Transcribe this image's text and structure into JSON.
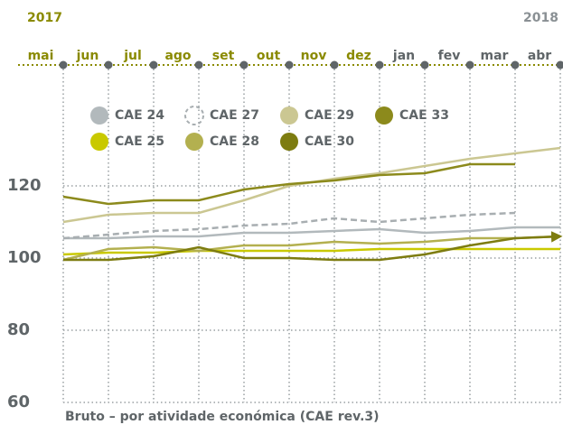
{
  "chart_data": {
    "type": "line",
    "years": [
      "2017",
      "2018"
    ],
    "year_colors": [
      "#8a8a00",
      "#8a9094"
    ],
    "categories": [
      "mai",
      "jun",
      "jul",
      "ago",
      "set",
      "out",
      "nov",
      "dez",
      "jan",
      "fev",
      "mar",
      "abr"
    ],
    "category_colors": [
      "#8a8a00",
      "#8a8a00",
      "#8a8a00",
      "#8a8a00",
      "#8a8a00",
      "#8a8a00",
      "#8a8a00",
      "#8a8a00",
      "#5f6568",
      "#5f6568",
      "#5f6568",
      "#5f6568"
    ],
    "ylim": [
      60,
      153.5
    ],
    "yticks": [
      60,
      80,
      100,
      120
    ],
    "grid": true,
    "series": [
      {
        "name": "CAE 24",
        "color": "#b2b9bc",
        "values": [
          105.5,
          105.5,
          106,
          106,
          107,
          107,
          107.5,
          108,
          107,
          107.5,
          108.5,
          108.5
        ]
      },
      {
        "name": "CAE 27",
        "color": "#a8aeb1",
        "dashed": true,
        "values": [
          105.5,
          106.5,
          107.5,
          108,
          109,
          109.5,
          111,
          110,
          111,
          112,
          112.5,
          null
        ]
      },
      {
        "name": "CAE 29",
        "color": "#cbc792",
        "values": [
          110,
          112,
          112.5,
          112.5,
          116,
          120,
          122,
          123.5,
          125.5,
          127.5,
          129,
          130.5
        ]
      },
      {
        "name": "CAE 33",
        "color": "#8c8a1c",
        "values": [
          117,
          115,
          116,
          116,
          119,
          120.5,
          121.5,
          123,
          123.5,
          126,
          126,
          null
        ]
      },
      {
        "name": "CAE 25",
        "color": "#c9c900",
        "values": [
          101,
          101.5,
          101.5,
          102,
          102,
          102,
          102,
          102.5,
          102.5,
          102.5,
          102.5,
          102.5
        ]
      },
      {
        "name": "CAE 28",
        "color": "#b3b04f",
        "values": [
          99.5,
          102.5,
          103,
          102,
          103.5,
          103.5,
          104.5,
          104,
          104.5,
          105.5,
          105.5,
          106
        ]
      },
      {
        "name": "CAE 30",
        "color": "#7d7c10",
        "arrow": true,
        "values": [
          99.5,
          99.5,
          100.5,
          103,
          100,
          100,
          99.5,
          99.5,
          101,
          103.5,
          105.5,
          106
        ]
      }
    ],
    "footnote": "Bruto – por atividade económica (CAE rev.3)"
  }
}
